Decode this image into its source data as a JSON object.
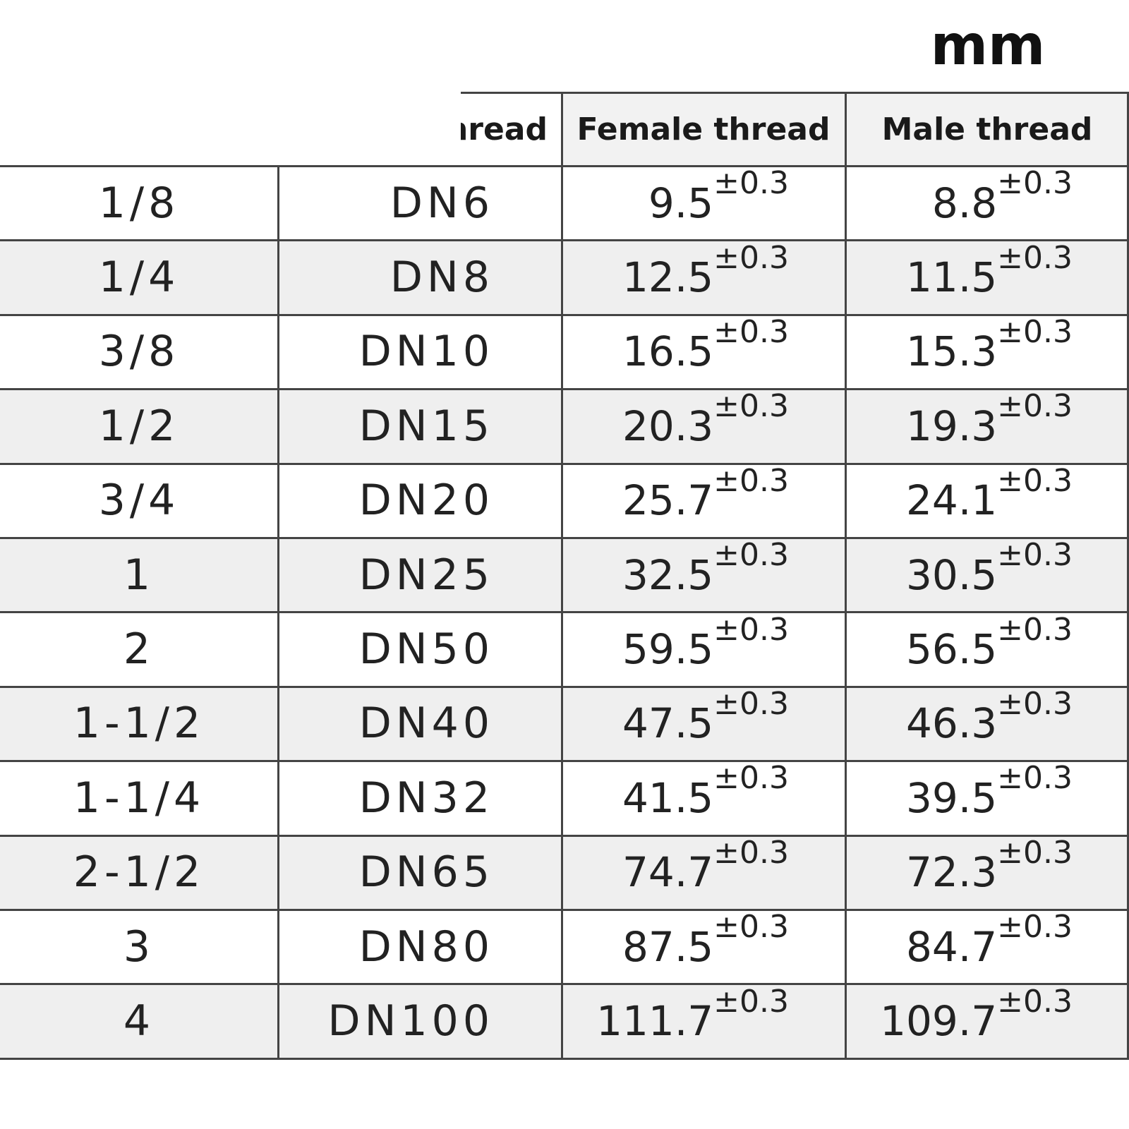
{
  "unit": "mm",
  "table": {
    "header": [
      "hread",
      "Female thread",
      "Male thread"
    ],
    "rows": [
      [
        "1/8",
        "DN6",
        {
          "value": "9.5",
          "tol": "±0.3"
        },
        {
          "value": "8.8",
          "tol": "±0.3"
        }
      ],
      [
        "1/4",
        "DN8",
        {
          "value": "12.5",
          "tol": "±0.3"
        },
        {
          "value": "11.5",
          "tol": "±0.3"
        }
      ],
      [
        "3/8",
        "DN10",
        {
          "value": "16.5",
          "tol": "±0.3"
        },
        {
          "value": "15.3",
          "tol": "±0.3"
        }
      ],
      [
        "1/2",
        "DN15",
        {
          "value": "20.3",
          "tol": "±0.3"
        },
        {
          "value": "19.3",
          "tol": "±0.3"
        }
      ],
      [
        "3/4",
        "DN20",
        {
          "value": "25.7",
          "tol": "±0.3"
        },
        {
          "value": "24.1",
          "tol": "±0.3"
        }
      ],
      [
        "1",
        "DN25",
        {
          "value": "32.5",
          "tol": "±0.3"
        },
        {
          "value": "30.5",
          "tol": "±0.3"
        }
      ],
      [
        "2",
        "DN50",
        {
          "value": "59.5",
          "tol": "±0.3"
        },
        {
          "value": "56.5",
          "tol": "±0.3"
        }
      ],
      [
        "1-1/2",
        "DN40",
        {
          "value": "47.5",
          "tol": "±0.3"
        },
        {
          "value": "46.3",
          "tol": "±0.3"
        }
      ],
      [
        "1-1/4",
        "DN32",
        {
          "value": "41.5",
          "tol": "±0.3"
        },
        {
          "value": "39.5",
          "tol": "±0.3"
        }
      ],
      [
        "2-1/2",
        "DN65",
        {
          "value": "74.7",
          "tol": "±0.3"
        },
        {
          "value": "72.3",
          "tol": "±0.3"
        }
      ],
      [
        "3",
        "DN80",
        {
          "value": "87.5",
          "tol": "±0.3"
        },
        {
          "value": "84.7",
          "tol": "±0.3"
        }
      ],
      [
        "4",
        "DN100",
        {
          "value": "111.7",
          "tol": "±0.3"
        },
        {
          "value": "109.7",
          "tol": "±0.3"
        }
      ]
    ]
  }
}
